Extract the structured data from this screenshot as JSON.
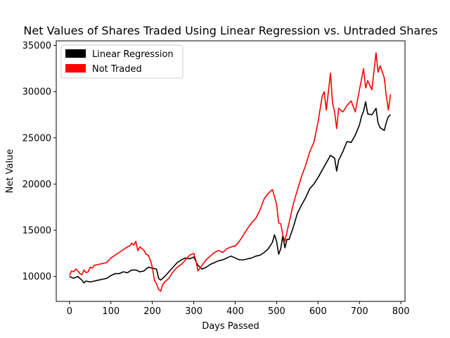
{
  "chart_data": {
    "type": "line",
    "title": "Net Values of Shares Traded Using Linear Regression vs. Untraded Shares",
    "xlabel": "Days Passed",
    "ylabel": "Net Value",
    "xlim": [
      -32,
      810
    ],
    "ylim": [
      7300,
      35500
    ],
    "xticks": [
      0,
      100,
      200,
      300,
      400,
      500,
      600,
      700,
      800
    ],
    "yticks": [
      10000,
      15000,
      20000,
      25000,
      30000,
      35000
    ],
    "grid": false,
    "legend_position": "top-left",
    "series": [
      {
        "name": "Linear Regression",
        "color": "#000000",
        "x": [
          0,
          10,
          20,
          30,
          35,
          40,
          50,
          60,
          70,
          80,
          90,
          100,
          110,
          120,
          130,
          140,
          150,
          160,
          170,
          180,
          190,
          200,
          210,
          215,
          220,
          230,
          240,
          250,
          260,
          270,
          280,
          290,
          300,
          310,
          320,
          330,
          340,
          350,
          360,
          370,
          380,
          390,
          400,
          410,
          420,
          430,
          440,
          450,
          460,
          470,
          480,
          490,
          495,
          500,
          505,
          510,
          515,
          520,
          525,
          530,
          540,
          550,
          560,
          570,
          580,
          590,
          600,
          610,
          620,
          630,
          640,
          645,
          650,
          660,
          670,
          680,
          690,
          700,
          705,
          710,
          715,
          720,
          730,
          740,
          745,
          750,
          760,
          765,
          770,
          775
        ],
        "y": [
          10000,
          9800,
          10000,
          9600,
          9300,
          9500,
          9400,
          9500,
          9600,
          9700,
          9800,
          10100,
          10300,
          10300,
          10500,
          10400,
          10700,
          10700,
          10500,
          10600,
          11000,
          10900,
          10800,
          9800,
          9600,
          10000,
          10500,
          11000,
          11500,
          11800,
          12000,
          11900,
          12100,
          11200,
          10800,
          11000,
          11300,
          11500,
          11700,
          11800,
          12000,
          12200,
          12000,
          11800,
          11800,
          11900,
          12000,
          12200,
          12300,
          12600,
          13000,
          13700,
          14500,
          13800,
          12400,
          13000,
          14400,
          13100,
          14000,
          14000,
          15300,
          16800,
          17700,
          18500,
          19500,
          20000,
          20700,
          21500,
          22300,
          23100,
          22800,
          21400,
          22600,
          23500,
          24600,
          24500,
          25300,
          26400,
          27300,
          27900,
          28900,
          27600,
          27500,
          28200,
          26600,
          26100,
          25800,
          26700,
          27300,
          27500
        ]
      },
      {
        "name": "Not Traded",
        "color": "#ff0000",
        "x": [
          0,
          5,
          10,
          15,
          20,
          25,
          30,
          35,
          40,
          45,
          50,
          55,
          60,
          70,
          80,
          90,
          100,
          110,
          120,
          130,
          140,
          145,
          150,
          155,
          160,
          165,
          170,
          175,
          180,
          185,
          190,
          195,
          200,
          205,
          210,
          215,
          220,
          225,
          230,
          240,
          250,
          260,
          270,
          280,
          290,
          300,
          305,
          310,
          320,
          330,
          340,
          350,
          360,
          370,
          380,
          390,
          400,
          410,
          420,
          430,
          440,
          450,
          460,
          470,
          480,
          490,
          500,
          505,
          510,
          515,
          520,
          525,
          530,
          540,
          550,
          560,
          570,
          580,
          590,
          600,
          610,
          615,
          620,
          630,
          635,
          640,
          645,
          650,
          660,
          670,
          680,
          690,
          700,
          710,
          715,
          720,
          730,
          740,
          745,
          750,
          760,
          765,
          770,
          775
        ],
        "y": [
          10100,
          10600,
          10500,
          10800,
          10600,
          10300,
          10200,
          10700,
          10400,
          10500,
          11000,
          10900,
          11200,
          11300,
          11400,
          11500,
          12000,
          12300,
          12600,
          12900,
          13200,
          13300,
          13600,
          13400,
          13800,
          12800,
          13200,
          13000,
          12800,
          12400,
          12300,
          11800,
          11000,
          9600,
          9200,
          8600,
          8400,
          9100,
          9400,
          9800,
          10500,
          11000,
          11300,
          11800,
          12300,
          12500,
          11800,
          10600,
          11200,
          11800,
          12200,
          12600,
          12800,
          12600,
          13000,
          13200,
          13300,
          13800,
          14500,
          15200,
          15800,
          16300,
          17200,
          18400,
          19000,
          19400,
          17800,
          15800,
          15700,
          14500,
          13800,
          14800,
          15800,
          17800,
          19300,
          20800,
          22000,
          23500,
          24500,
          26700,
          29500,
          30000,
          28000,
          32000,
          28800,
          27800,
          26000,
          28200,
          27800,
          28500,
          29000,
          27800,
          30200,
          32500,
          30400,
          31200,
          30200,
          34200,
          32100,
          32800,
          31500,
          29500,
          28000,
          29700
        ]
      }
    ]
  }
}
